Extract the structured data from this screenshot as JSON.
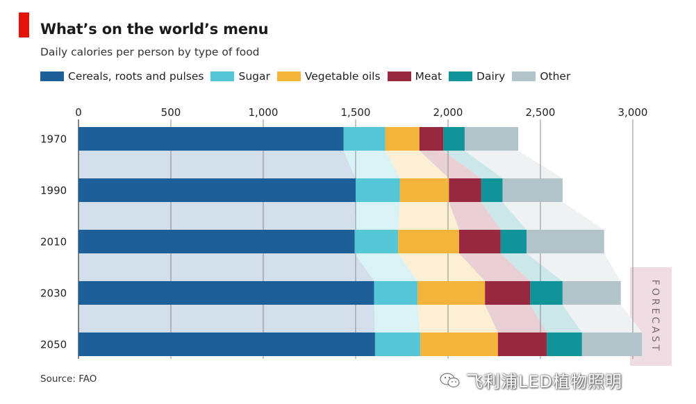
{
  "header": {
    "title": "What’s on the world’s menu",
    "subtitle": "Daily calories per person by type of food"
  },
  "footer": {
    "source": "Source: FAO",
    "watermark": "飞利浦LED植物照明"
  },
  "chart_data": {
    "type": "bar",
    "orientation": "horizontal",
    "stacked": true,
    "categories": [
      "1970",
      "1990",
      "2010",
      "2030",
      "2050"
    ],
    "forecast_label": "FORECAST",
    "forecast_categories": [
      "2030",
      "2050"
    ],
    "x_ticks": [
      0,
      500,
      1000,
      1500,
      2000,
      2500,
      3000
    ],
    "x_tick_labels": [
      "0",
      "500",
      "1,000",
      "1,500",
      "2,000",
      "2,500",
      "3,000"
    ],
    "xlim": [
      0,
      3000
    ],
    "grid": true,
    "legend_position": "top-left",
    "series": [
      {
        "name": "Cereals, roots and pulses",
        "color": "#1d5f99",
        "values": [
          1435,
          1500,
          1495,
          1600,
          1605
        ]
      },
      {
        "name": "Sugar",
        "color": "#54c6d6",
        "values": [
          225,
          240,
          235,
          235,
          245
        ]
      },
      {
        "name": "Vegetable oils",
        "color": "#f3b43b",
        "values": [
          185,
          265,
          330,
          365,
          420
        ]
      },
      {
        "name": "Meat",
        "color": "#97283f",
        "values": [
          130,
          175,
          225,
          245,
          265
        ]
      },
      {
        "name": "Dairy",
        "color": "#11939a",
        "values": [
          115,
          115,
          140,
          175,
          190
        ]
      },
      {
        "name": "Other",
        "color": "#b3c3ca",
        "values": [
          290,
          325,
          420,
          315,
          325
        ]
      }
    ]
  }
}
